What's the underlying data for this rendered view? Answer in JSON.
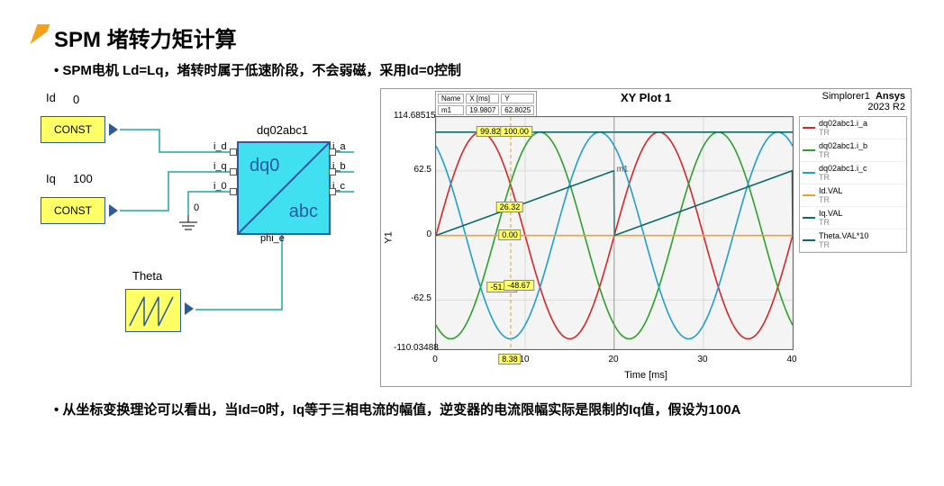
{
  "title": "SPM 堵转力矩计算",
  "bullet1": "SPM电机 Ld=Lq，堵转时属于低速阶段，不会弱磁，采用Id=0控制",
  "bullet2": "从坐标变换理论可以看出，当Id=0时，Iq等于三相电流的幅值，逆变器的电流限幅实际是限制的Iq值，假设为100A",
  "diagram": {
    "Id_label": "Id",
    "Id_value": "0",
    "Iq_label": "Iq",
    "Iq_value": "100",
    "const_label": "CONST",
    "theta_label": "Theta",
    "block_name": "dq02abc1",
    "dq0": "dq0",
    "abc": "abc",
    "ports_left": [
      "i_d",
      "i_q",
      "i_0"
    ],
    "ports_right": [
      "i_a",
      "i_b",
      "i_c"
    ],
    "phi_label": "phi_e",
    "zero": "0",
    "wire_color": "#1da89e",
    "box_bg": "#ffff66",
    "dq_bg": "#40e0f0",
    "border": "#2a5aa0"
  },
  "plot": {
    "title": "XY Plot 1",
    "subtitle": "Simplorer1",
    "brand": "Ansys",
    "brand_sub": "2023 R2",
    "xlabel": "Time [ms]",
    "ylabel": "Y1",
    "ylim": [
      -110.03488,
      114.68515
    ],
    "yticks": [
      -110.03488,
      -62.5,
      0,
      62.5,
      114.68515
    ],
    "xlim": [
      0,
      40
    ],
    "xticks": [
      0,
      10,
      20,
      30,
      40
    ],
    "grid_color": "#d8d8d8",
    "bg": "#f4f4f4",
    "marker": {
      "name": "m1",
      "x": "19.9807",
      "y": "62.8025",
      "cols": [
        "Name",
        "X [ms]",
        "Y"
      ]
    },
    "xmarker": "8.38",
    "callouts": [
      {
        "v": "99.82",
        "x_ms": 6.2,
        "y": 100
      },
      {
        "v": "100.00",
        "x_ms": 9.1,
        "y": 100
      },
      {
        "v": "26.32",
        "x_ms": 8.38,
        "y": 26.32
      },
      {
        "v": "0.00",
        "x_ms": 8.38,
        "y": 0
      },
      {
        "v": "-51.15",
        "x_ms": 7.5,
        "y": -51.15
      },
      {
        "v": "-48.67",
        "x_ms": 9.4,
        "y": -48.67
      }
    ],
    "series": [
      {
        "name": "dq02abc1.i_a",
        "color": "#d62728",
        "type": "sine",
        "amp": 100,
        "period_ms": 20,
        "phase_deg": 0
      },
      {
        "name": "dq02abc1.i_b",
        "color": "#2ca02c",
        "type": "sine",
        "amp": 100,
        "period_ms": 20,
        "phase_deg": -120
      },
      {
        "name": "dq02abc1.i_c",
        "color": "#1f9ed1",
        "type": "sine",
        "amp": 100,
        "period_ms": 20,
        "phase_deg": 120
      },
      {
        "name": "Id.VAL",
        "color": "#f0a030",
        "type": "const",
        "value": 0
      },
      {
        "name": "Iq.VAL",
        "color": "#0b6b6b",
        "type": "const",
        "value": 100
      },
      {
        "name": "Theta.VAL*10",
        "color": "#0b6b6b",
        "type": "saw",
        "amp": 62.83,
        "period_ms": 20
      }
    ]
  }
}
